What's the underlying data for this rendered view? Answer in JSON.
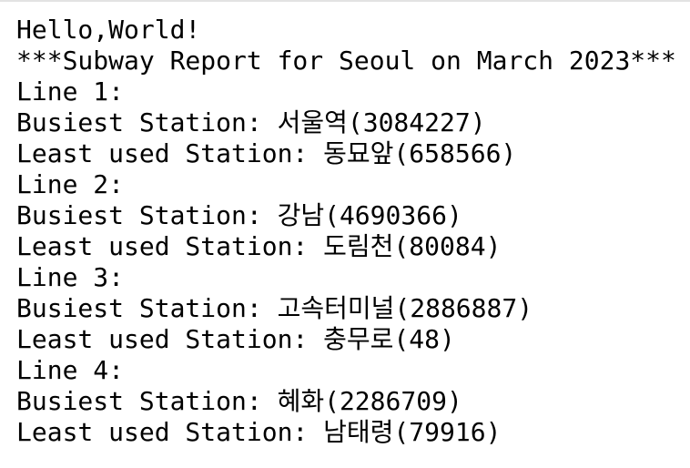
{
  "console": {
    "greeting": "Hello,World!",
    "title": "***Subway Report for Seoul on March 2023***",
    "lines": [
      {
        "label": "Line 1:",
        "busiest": "Busiest Station: 서울역(3084227)",
        "least": "Least used Station: 동묘앞(658566)"
      },
      {
        "label": "Line 2:",
        "busiest": "Busiest Station: 강남(4690366)",
        "least": "Least used Station: 도림천(80084)"
      },
      {
        "label": "Line 3:",
        "busiest": "Busiest Station: 고속터미널(2886887)",
        "least": "Least used Station: 충무로(48)"
      },
      {
        "label": "Line 4:",
        "busiest": "Busiest Station: 혜화(2286709)",
        "least": "Least used Station: 남태령(79916)"
      }
    ]
  }
}
